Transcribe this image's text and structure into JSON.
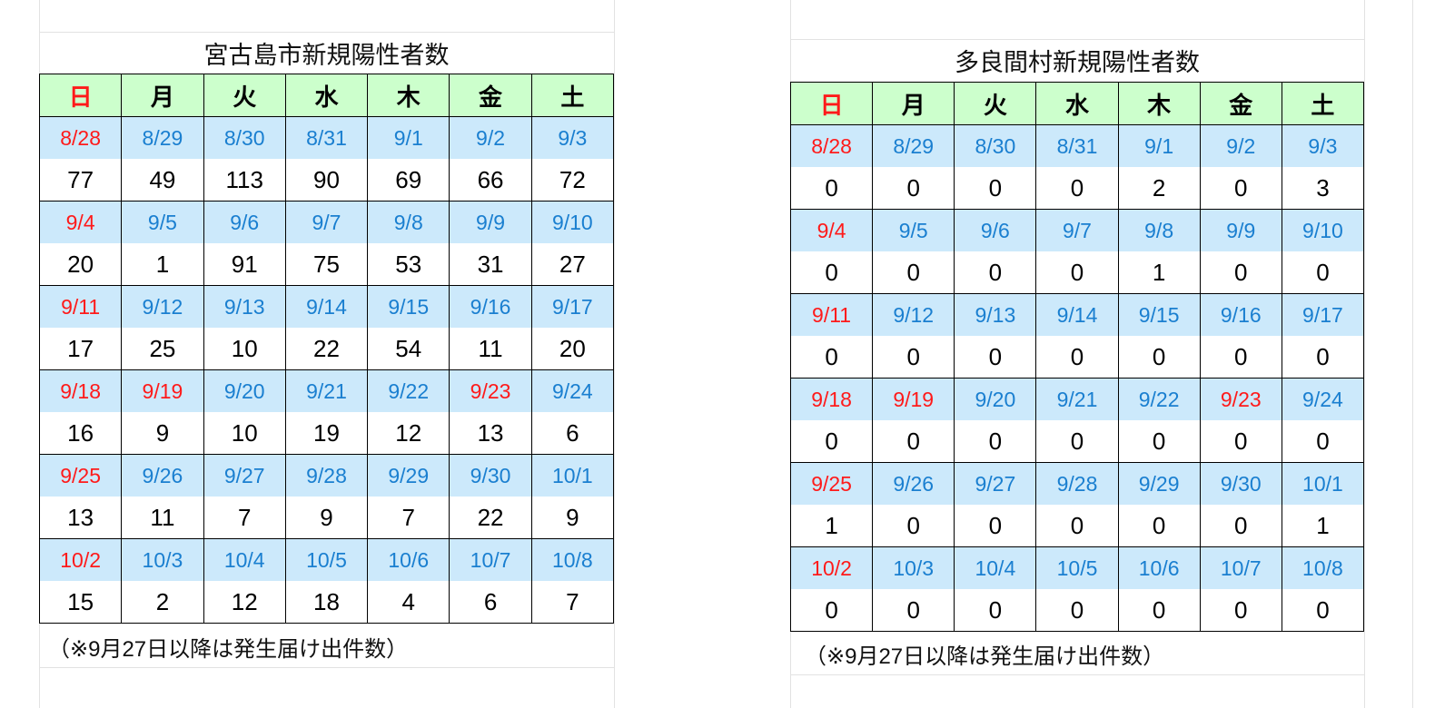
{
  "colors": {
    "header_bg": "#ccffcc",
    "date_bg": "#cce9fb",
    "date_text": "#1a7fd0",
    "holiday_text": "#ff1a1a"
  },
  "weekdays": [
    "日",
    "月",
    "火",
    "水",
    "木",
    "金",
    "土"
  ],
  "tables": [
    {
      "title": "宮古島市新規陽性者数",
      "weeks": [
        {
          "dates": [
            "8/28",
            "8/29",
            "8/30",
            "8/31",
            "9/1",
            "9/2",
            "9/3"
          ],
          "values": [
            "77",
            "49",
            "113",
            "90",
            "69",
            "66",
            "72"
          ],
          "red": [
            0
          ]
        },
        {
          "dates": [
            "9/4",
            "9/5",
            "9/6",
            "9/7",
            "9/8",
            "9/9",
            "9/10"
          ],
          "values": [
            "20",
            "1",
            "91",
            "75",
            "53",
            "31",
            "27"
          ],
          "red": [
            0
          ]
        },
        {
          "dates": [
            "9/11",
            "9/12",
            "9/13",
            "9/14",
            "9/15",
            "9/16",
            "9/17"
          ],
          "values": [
            "17",
            "25",
            "10",
            "22",
            "54",
            "11",
            "20"
          ],
          "red": [
            0
          ]
        },
        {
          "dates": [
            "9/18",
            "9/19",
            "9/20",
            "9/21",
            "9/22",
            "9/23",
            "9/24"
          ],
          "values": [
            "16",
            "9",
            "10",
            "19",
            "12",
            "13",
            "6"
          ],
          "red": [
            0,
            1,
            5
          ]
        },
        {
          "dates": [
            "9/25",
            "9/26",
            "9/27",
            "9/28",
            "9/29",
            "9/30",
            "10/1"
          ],
          "values": [
            "13",
            "11",
            "7",
            "9",
            "7",
            "22",
            "9"
          ],
          "red": [
            0
          ]
        },
        {
          "dates": [
            "10/2",
            "10/3",
            "10/4",
            "10/5",
            "10/6",
            "10/7",
            "10/8"
          ],
          "values": [
            "15",
            "2",
            "12",
            "18",
            "4",
            "6",
            "7"
          ],
          "red": [
            0
          ]
        }
      ],
      "note": "（※9月27日以降は発生届け出件数）"
    },
    {
      "title": "多良間村新規陽性者数",
      "weeks": [
        {
          "dates": [
            "8/28",
            "8/29",
            "8/30",
            "8/31",
            "9/1",
            "9/2",
            "9/3"
          ],
          "values": [
            "0",
            "0",
            "0",
            "0",
            "2",
            "0",
            "3"
          ],
          "red": [
            0
          ]
        },
        {
          "dates": [
            "9/4",
            "9/5",
            "9/6",
            "9/7",
            "9/8",
            "9/9",
            "9/10"
          ],
          "values": [
            "0",
            "0",
            "0",
            "0",
            "1",
            "0",
            "0"
          ],
          "red": [
            0
          ]
        },
        {
          "dates": [
            "9/11",
            "9/12",
            "9/13",
            "9/14",
            "9/15",
            "9/16",
            "9/17"
          ],
          "values": [
            "0",
            "0",
            "0",
            "0",
            "0",
            "0",
            "0"
          ],
          "red": [
            0
          ]
        },
        {
          "dates": [
            "9/18",
            "9/19",
            "9/20",
            "9/21",
            "9/22",
            "9/23",
            "9/24"
          ],
          "values": [
            "0",
            "0",
            "0",
            "0",
            "0",
            "0",
            "0"
          ],
          "red": [
            0,
            1,
            5
          ]
        },
        {
          "dates": [
            "9/25",
            "9/26",
            "9/27",
            "9/28",
            "9/29",
            "9/30",
            "10/1"
          ],
          "values": [
            "1",
            "0",
            "0",
            "0",
            "0",
            "0",
            "1"
          ],
          "red": [
            0
          ]
        },
        {
          "dates": [
            "10/2",
            "10/3",
            "10/4",
            "10/5",
            "10/6",
            "10/7",
            "10/8"
          ],
          "values": [
            "0",
            "0",
            "0",
            "0",
            "0",
            "0",
            "0"
          ],
          "red": [
            0
          ]
        }
      ],
      "note": "（※9月27日以降は発生届け出件数）"
    }
  ]
}
